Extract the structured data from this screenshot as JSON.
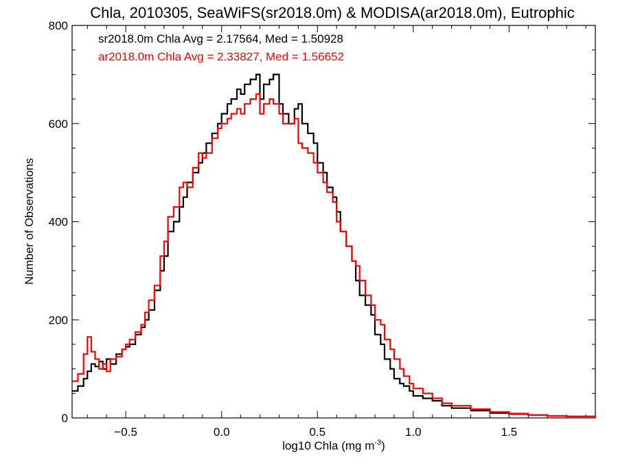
{
  "chart_data": {
    "type": "line",
    "title": "Chla, 2010305, SeaWiFS(sr2018.0m) & MODISA(ar2018.0m), Eutrophic",
    "xlabel": "log10 Chla (mg m",
    "xlabel_sup": "-3",
    "xlabel_close": ")",
    "ylabel": "Number of Observations",
    "xlim": [
      -0.78,
      1.95
    ],
    "ylim": [
      0,
      800
    ],
    "xticks": [
      -0.5,
      0.0,
      0.5,
      1.0,
      1.5
    ],
    "xtick_labels": [
      "−0.5",
      "0.0",
      "0.5",
      "1.0",
      "1.5"
    ],
    "yticks": [
      0,
      200,
      400,
      600,
      800
    ],
    "ytick_labels": [
      "0",
      "200",
      "400",
      "600",
      "800"
    ],
    "grid": false,
    "legend": [
      {
        "text": "sr2018.0m Chla Avg = 2.17564, Med = 1.50928",
        "color": "#000000"
      },
      {
        "text": "ar2018.0m Chla Avg = 2.33827, Med = 1.56652",
        "color": "#ff0000"
      }
    ],
    "series": [
      {
        "color": "#000000",
        "x": [
          -0.78,
          -0.75,
          -0.72,
          -0.7,
          -0.68,
          -0.66,
          -0.64,
          -0.62,
          -0.6,
          -0.58,
          -0.55,
          -0.52,
          -0.5,
          -0.48,
          -0.45,
          -0.42,
          -0.4,
          -0.38,
          -0.35,
          -0.32,
          -0.3,
          -0.28,
          -0.25,
          -0.22,
          -0.2,
          -0.18,
          -0.15,
          -0.12,
          -0.1,
          -0.08,
          -0.05,
          -0.02,
          0.0,
          0.03,
          0.05,
          0.08,
          0.1,
          0.12,
          0.15,
          0.18,
          0.2,
          0.22,
          0.25,
          0.27,
          0.3,
          0.32,
          0.35,
          0.38,
          0.4,
          0.42,
          0.45,
          0.48,
          0.5,
          0.53,
          0.55,
          0.58,
          0.6,
          0.62,
          0.65,
          0.68,
          0.7,
          0.72,
          0.75,
          0.78,
          0.8,
          0.83,
          0.85,
          0.88,
          0.9,
          0.93,
          0.95,
          0.98,
          1.0,
          1.05,
          1.1,
          1.15,
          1.2,
          1.3,
          1.4,
          1.5,
          1.6,
          1.7,
          1.8,
          1.95
        ],
        "y": [
          55,
          65,
          80,
          95,
          110,
          105,
          115,
          100,
          120,
          110,
          130,
          140,
          145,
          150,
          170,
          185,
          200,
          220,
          260,
          300,
          330,
          380,
          400,
          430,
          450,
          480,
          500,
          520,
          540,
          560,
          580,
          600,
          620,
          640,
          650,
          670,
          660,
          680,
          690,
          700,
          650,
          680,
          690,
          700,
          640,
          620,
          600,
          630,
          640,
          600,
          580,
          560,
          520,
          500,
          470,
          450,
          420,
          380,
          350,
          320,
          280,
          250,
          230,
          210,
          170,
          150,
          120,
          100,
          80,
          70,
          65,
          55,
          45,
          40,
          35,
          25,
          20,
          15,
          10,
          8,
          6,
          4,
          3,
          2
        ]
      },
      {
        "color": "#ff0000",
        "x": [
          -0.78,
          -0.75,
          -0.72,
          -0.7,
          -0.68,
          -0.66,
          -0.64,
          -0.62,
          -0.6,
          -0.58,
          -0.55,
          -0.52,
          -0.5,
          -0.48,
          -0.45,
          -0.42,
          -0.4,
          -0.38,
          -0.35,
          -0.32,
          -0.3,
          -0.28,
          -0.25,
          -0.22,
          -0.2,
          -0.18,
          -0.15,
          -0.12,
          -0.1,
          -0.08,
          -0.05,
          -0.02,
          0.0,
          0.03,
          0.05,
          0.08,
          0.1,
          0.12,
          0.15,
          0.18,
          0.2,
          0.22,
          0.25,
          0.27,
          0.3,
          0.32,
          0.35,
          0.38,
          0.4,
          0.42,
          0.45,
          0.48,
          0.5,
          0.53,
          0.55,
          0.58,
          0.6,
          0.62,
          0.65,
          0.68,
          0.7,
          0.72,
          0.75,
          0.78,
          0.8,
          0.83,
          0.85,
          0.88,
          0.9,
          0.93,
          0.95,
          0.98,
          1.0,
          1.05,
          1.1,
          1.15,
          1.2,
          1.3,
          1.4,
          1.5,
          1.6,
          1.7,
          1.8,
          1.95
        ],
        "y": [
          75,
          90,
          130,
          165,
          135,
          120,
          100,
          110,
          95,
          120,
          125,
          140,
          150,
          160,
          175,
          190,
          215,
          240,
          270,
          330,
          360,
          410,
          430,
          470,
          480,
          470,
          510,
          540,
          530,
          540,
          570,
          590,
          600,
          610,
          620,
          630,
          620,
          640,
          650,
          660,
          620,
          640,
          650,
          640,
          620,
          600,
          600,
          610,
          560,
          550,
          540,
          520,
          500,
          480,
          460,
          440,
          400,
          380,
          350,
          320,
          310,
          280,
          250,
          230,
          200,
          190,
          160,
          140,
          120,
          100,
          85,
          70,
          60,
          50,
          40,
          30,
          25,
          18,
          12,
          9,
          6,
          4,
          3,
          2
        ]
      }
    ]
  }
}
